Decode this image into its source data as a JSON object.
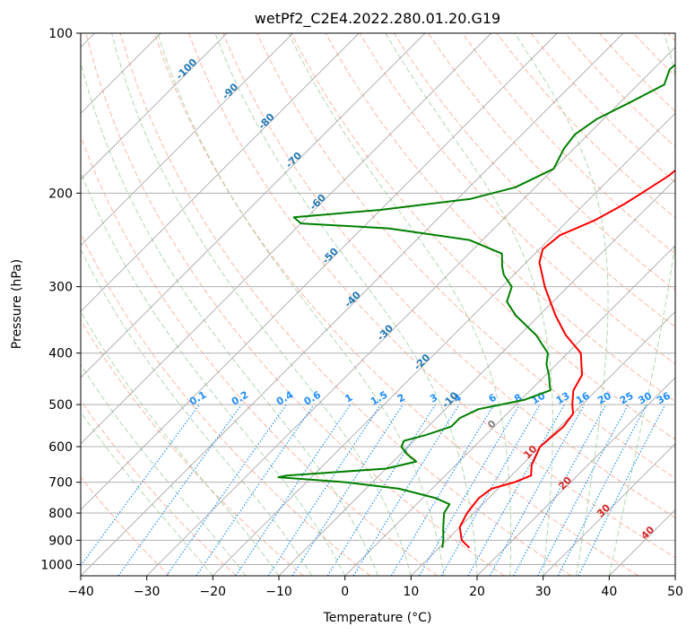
{
  "chart_data": {
    "type": "line",
    "subtype": "skew-T log-P diagram",
    "title": "wetPf2_C2E4.2022.280.01.20.G19",
    "xlabel": "Temperature (°C)",
    "ylabel": "Pressure (hPa)",
    "xlim": [
      -40,
      50
    ],
    "ylim": [
      1050,
      100
    ],
    "y_scale": "log",
    "grid": true,
    "x_ticks": [
      -40,
      -30,
      -20,
      -10,
      0,
      10,
      20,
      30,
      40,
      50
    ],
    "x_tick_labels": [
      "−40",
      "−30",
      "−20",
      "−10",
      "0",
      "10",
      "20",
      "30",
      "40",
      "50"
    ],
    "y_ticks": [
      100,
      200,
      300,
      400,
      500,
      600,
      700,
      800,
      900,
      1000
    ],
    "y_tick_labels": [
      "100",
      "200",
      "300",
      "400",
      "500",
      "600",
      "700",
      "800",
      "900",
      "1000"
    ],
    "colors": {
      "temperature": "#ff0000",
      "dewpoint": "#008000",
      "isotherm": "#808080",
      "dry_adiabat": "#ff9f80",
      "moist_adiabat": "#90c890",
      "mixing_ratio": "#1f8fff",
      "isotherm_label": "#1f77b4",
      "dry_adiabat_label": "#d62728"
    },
    "series": [
      {
        "role": "temperature",
        "points": [
          {
            "p": 930,
            "t": 14.6
          },
          {
            "p": 900,
            "t": 12.3
          },
          {
            "p": 850,
            "t": 10.0
          },
          {
            "p": 800,
            "t": 9.0
          },
          {
            "p": 750,
            "t": 8.5
          },
          {
            "p": 720,
            "t": 9.0
          },
          {
            "p": 700,
            "t": 11.5
          },
          {
            "p": 680,
            "t": 13.0
          },
          {
            "p": 650,
            "t": 11.5
          },
          {
            "p": 600,
            "t": 10.0
          },
          {
            "p": 550,
            "t": 10.5
          },
          {
            "p": 520,
            "t": 10.0
          },
          {
            "p": 500,
            "t": 8.5
          },
          {
            "p": 470,
            "t": 6.5
          },
          {
            "p": 440,
            "t": 5.5
          },
          {
            "p": 400,
            "t": 2.0
          },
          {
            "p": 370,
            "t": -3.0
          },
          {
            "p": 340,
            "t": -7.5
          },
          {
            "p": 300,
            "t": -13.5
          },
          {
            "p": 270,
            "t": -18.0
          },
          {
            "p": 255,
            "t": -19.5
          },
          {
            "p": 240,
            "t": -19.0
          },
          {
            "p": 225,
            "t": -16.0
          },
          {
            "p": 210,
            "t": -14.0
          },
          {
            "p": 200,
            "t": -13.0
          },
          {
            "p": 185,
            "t": -11.5
          },
          {
            "p": 170,
            "t": -11.0
          },
          {
            "p": 160,
            "t": -12.5
          },
          {
            "p": 150,
            "t": -15.0
          },
          {
            "p": 140,
            "t": -17.0
          },
          {
            "p": 130,
            "t": -18.0
          },
          {
            "p": 120,
            "t": -21.5
          },
          {
            "p": 110,
            "t": -25.0
          },
          {
            "p": 100,
            "t": -29.0
          }
        ]
      },
      {
        "role": "dewpoint",
        "points": [
          {
            "p": 930,
            "t": 10.5
          },
          {
            "p": 900,
            "t": 9.5
          },
          {
            "p": 850,
            "t": 7.5
          },
          {
            "p": 800,
            "t": 5.5
          },
          {
            "p": 770,
            "t": 5.0
          },
          {
            "p": 750,
            "t": 2.0
          },
          {
            "p": 720,
            "t": -5.0
          },
          {
            "p": 700,
            "t": -14.0
          },
          {
            "p": 685,
            "t": -25.0
          },
          {
            "p": 680,
            "t": -24.0
          },
          {
            "p": 660,
            "t": -10.0
          },
          {
            "p": 640,
            "t": -6.5
          },
          {
            "p": 620,
            "t": -9.0
          },
          {
            "p": 600,
            "t": -11.0
          },
          {
            "p": 585,
            "t": -11.5
          },
          {
            "p": 570,
            "t": -9.0
          },
          {
            "p": 550,
            "t": -6.5
          },
          {
            "p": 530,
            "t": -6.5
          },
          {
            "p": 510,
            "t": -5.0
          },
          {
            "p": 490,
            "t": 0.5
          },
          {
            "p": 470,
            "t": 3.0
          },
          {
            "p": 440,
            "t": 0.5
          },
          {
            "p": 420,
            "t": -1.5
          },
          {
            "p": 400,
            "t": -3.0
          },
          {
            "p": 370,
            "t": -7.5
          },
          {
            "p": 340,
            "t": -13.5
          },
          {
            "p": 320,
            "t": -17.0
          },
          {
            "p": 300,
            "t": -18.5
          },
          {
            "p": 285,
            "t": -21.5
          },
          {
            "p": 275,
            "t": -23.0
          },
          {
            "p": 260,
            "t": -25.0
          },
          {
            "p": 245,
            "t": -32.0
          },
          {
            "p": 233,
            "t": -46.0
          },
          {
            "p": 228,
            "t": -60.0
          },
          {
            "p": 222,
            "t": -62.0
          },
          {
            "p": 215,
            "t": -50.0
          },
          {
            "p": 205,
            "t": -38.0
          },
          {
            "p": 195,
            "t": -33.0
          },
          {
            "p": 180,
            "t": -30.0
          },
          {
            "p": 165,
            "t": -31.5
          },
          {
            "p": 155,
            "t": -32.0
          },
          {
            "p": 145,
            "t": -31.0
          },
          {
            "p": 135,
            "t": -28.5
          },
          {
            "p": 125,
            "t": -26.0
          },
          {
            "p": 117,
            "t": -27.5
          },
          {
            "p": 110,
            "t": -27.0
          },
          {
            "p": 105,
            "t": -25.0
          },
          {
            "p": 100,
            "t": -24.5
          }
        ]
      }
    ],
    "isotherm_labels": [
      "-100",
      "-90",
      "-80",
      "-70",
      "-60",
      "-50",
      "-40",
      "-30",
      "-20",
      "-10",
      "0",
      "10",
      "20",
      "30",
      "40"
    ],
    "mixing_ratio_labels": [
      "0.1",
      "0.2",
      "0.4",
      "0.6",
      "1",
      "1.5",
      "2",
      "3",
      "4",
      "6",
      "8",
      "10",
      "13",
      "16",
      "20",
      "25",
      "30",
      "36"
    ]
  }
}
